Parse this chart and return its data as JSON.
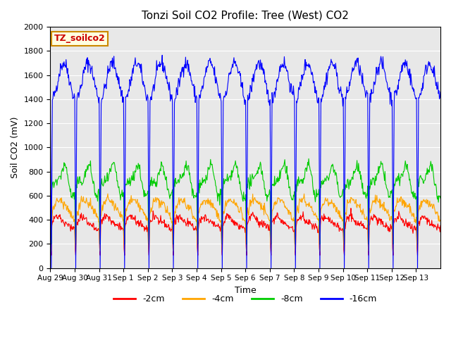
{
  "title": "Tonzi Soil CO2 Profile: Tree (West) CO2",
  "xlabel": "Time",
  "ylabel": "Soil CO2 (mV)",
  "ylim": [
    0,
    2000
  ],
  "yticks": [
    0,
    200,
    400,
    600,
    800,
    1000,
    1200,
    1400,
    1600,
    1800,
    2000
  ],
  "x_tick_labels": [
    "Aug 29",
    "Aug 30",
    "Aug 31",
    "Sep 1",
    "Sep 2",
    "Sep 3",
    "Sep 4",
    "Sep 5",
    "Sep 6",
    "Sep 7",
    "Sep 8",
    "Sep 9",
    "Sep 10",
    "Sep 11",
    "Sep 12",
    "Sep 13"
  ],
  "legend_label": "TZ_soilco2",
  "line_labels": [
    "-2cm",
    "-4cm",
    "-8cm",
    "-16cm"
  ],
  "line_colors": [
    "#ff0000",
    "#ffa500",
    "#00cc00",
    "#0000ff"
  ],
  "bg_color": "#e8e8e8",
  "fig_color": "#ffffff",
  "seed": 42
}
